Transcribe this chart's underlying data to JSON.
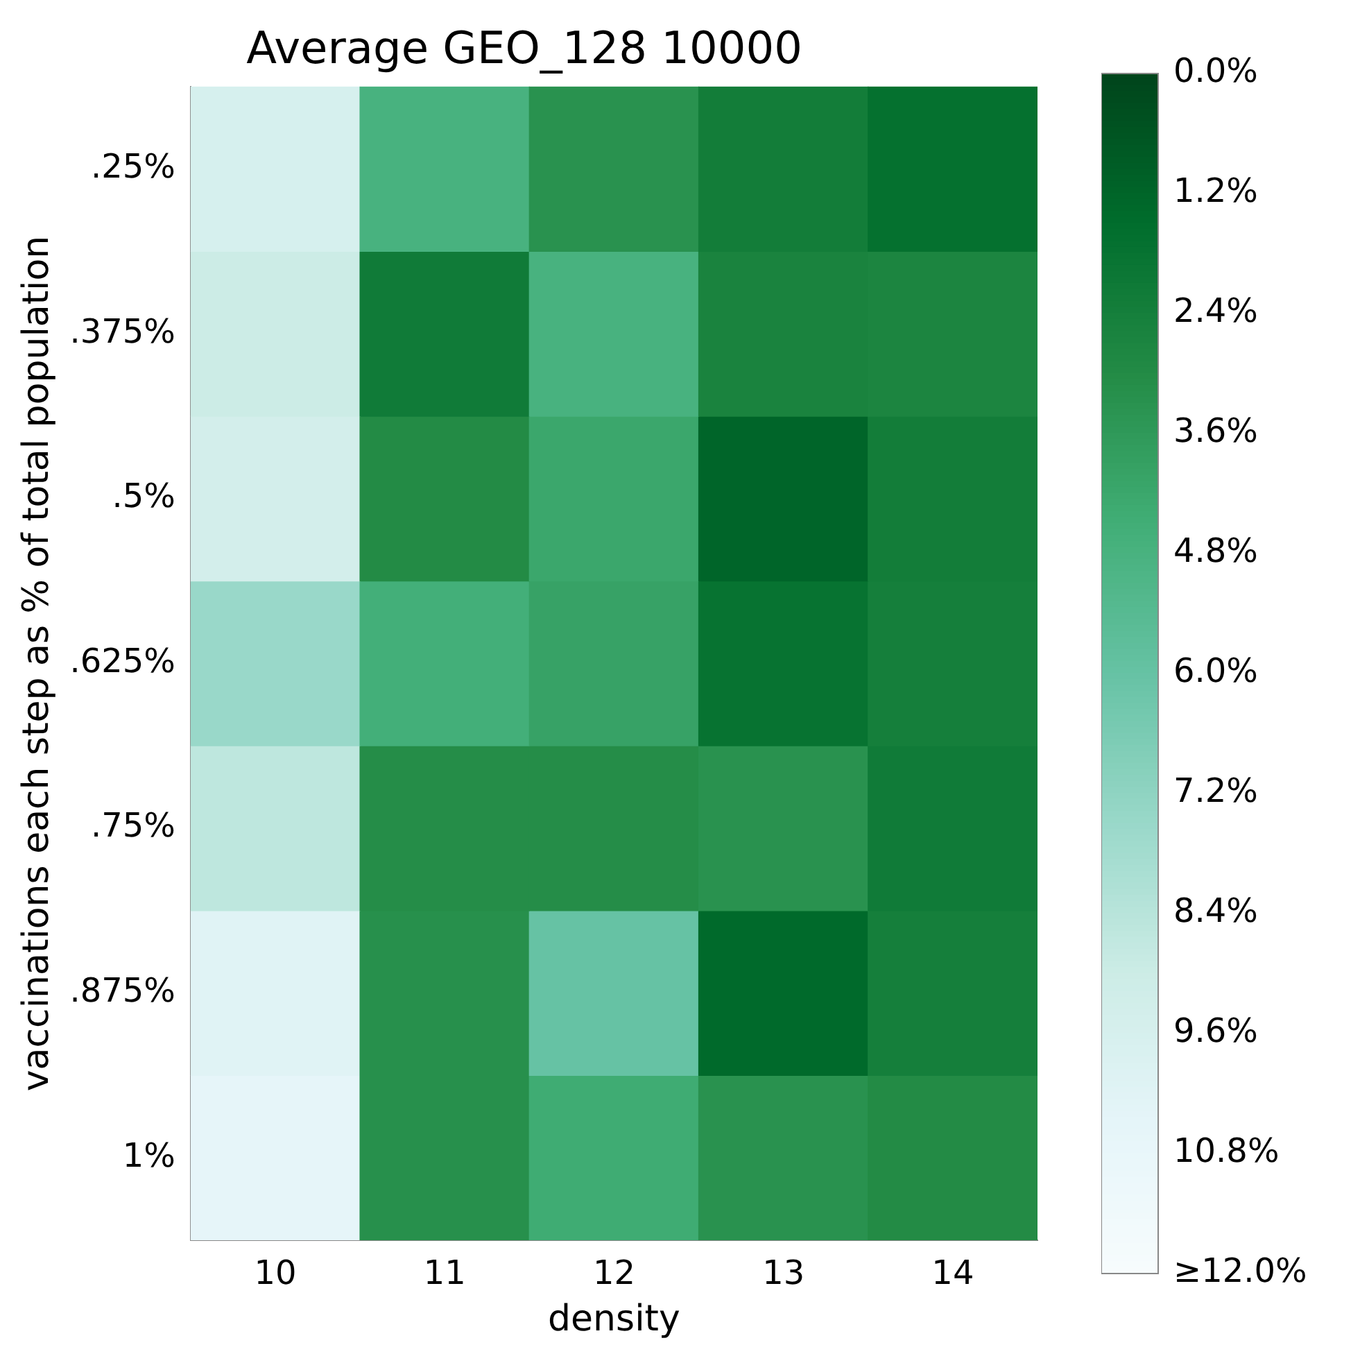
{
  "chart_data": {
    "type": "heatmap",
    "title": "Average GEO_128 10000",
    "xlabel": "density",
    "ylabel": "vaccinations each step as % of total population",
    "categories": [
      "10",
      "11",
      "12",
      "13",
      "14"
    ],
    "y_categories": [
      ".25%",
      ".375%",
      ".5%",
      ".625%",
      ".75%",
      ".875%",
      "1%"
    ],
    "cells": [
      [
        9.6,
        4.8,
        3.3,
        2.3,
        1.7
      ],
      [
        9.0,
        2.2,
        4.8,
        2.6,
        2.7
      ],
      [
        9.4,
        3.0,
        4.2,
        1.2,
        2.3
      ],
      [
        7.5,
        4.6,
        4.0,
        1.8,
        2.4
      ],
      [
        8.6,
        3.1,
        3.1,
        3.3,
        2.2
      ],
      [
        10.2,
        3.2,
        6.0,
        1.4,
        2.4
      ],
      [
        10.6,
        3.2,
        4.4,
        3.3,
        3.0
      ]
    ],
    "clim": [
      12,
      0
    ],
    "cticks": [
      {
        "value": 0,
        "label": "0.0%"
      },
      {
        "value": 1.2,
        "label": "1.2%"
      },
      {
        "value": 2.4,
        "label": "2.4%"
      },
      {
        "value": 3.6,
        "label": "3.6%"
      },
      {
        "value": 4.8,
        "label": "4.8%"
      },
      {
        "value": 6,
        "label": "6.0%"
      },
      {
        "value": 7.2,
        "label": "7.2%"
      },
      {
        "value": 8.4,
        "label": "8.4%"
      },
      {
        "value": 9.6,
        "label": "9.6%"
      },
      {
        "value": 10.8,
        "label": "10.8%"
      },
      {
        "value": 12,
        "label": "≥12.0%"
      }
    ]
  }
}
